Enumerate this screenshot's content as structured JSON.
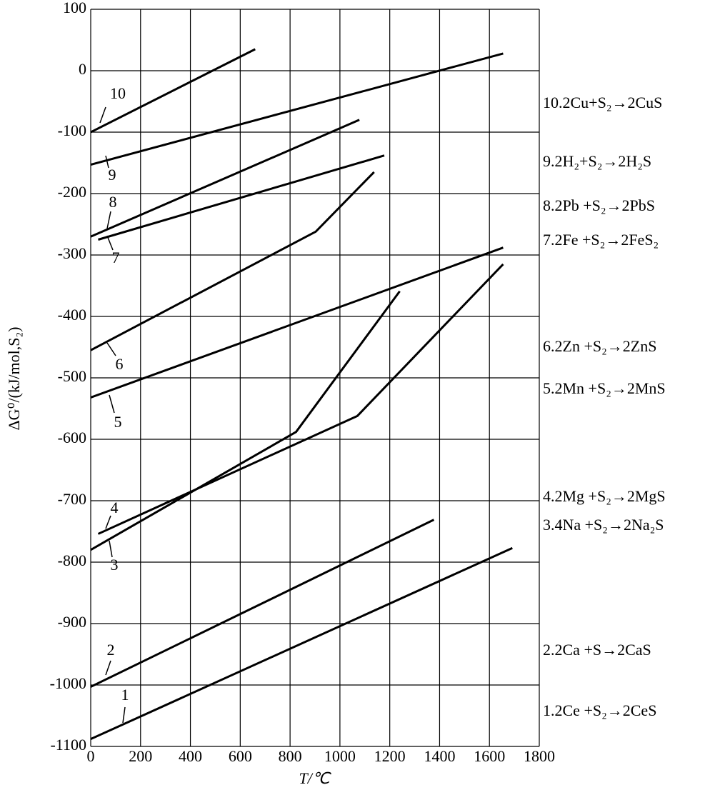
{
  "chart_data": {
    "type": "line",
    "xlabel": "T/℃",
    "ylabel": "ΔG⁰/(kJ/mol,S₂)",
    "xlim": [
      0,
      1800
    ],
    "xticks": [
      0,
      200,
      400,
      600,
      800,
      1000,
      1200,
      1400,
      1600,
      1800
    ],
    "ylim": [
      -1100,
      100
    ],
    "yticks": [
      -1100,
      -1000,
      -900,
      -800,
      -700,
      -600,
      -500,
      -400,
      -300,
      -200,
      -100,
      0,
      100
    ],
    "grid": true,
    "series": [
      {
        "label": "10",
        "name": "10.2Cu+S₂→2CuS",
        "color": "#000000",
        "x": [
          0,
          660
        ],
        "values": [
          -100,
          35
        ]
      },
      {
        "label": "9",
        "name": "9.2H₂+S₂→2H₂S",
        "color": "#000000",
        "x": [
          0,
          1655
        ],
        "values": [
          -153,
          28
        ]
      },
      {
        "label": "8",
        "name": "8.2Pb +S₂→2PbS",
        "color": "#000000",
        "x": [
          0,
          1078
        ],
        "values": [
          -270,
          -80
        ]
      },
      {
        "label": "7",
        "name": "7.2Fe +S₂→2FeS₂",
        "color": "#000000",
        "x": [
          30,
          1178
        ],
        "values": [
          -275,
          -138
        ]
      },
      {
        "label": "6",
        "name": "6.2Zn +S₂→2ZnS",
        "color": "#000000",
        "x": [
          0,
          903,
          1137
        ],
        "values": [
          -455,
          -262,
          -165
        ]
      },
      {
        "label": "5",
        "name": "5.2Mn +S₂→2MnS",
        "color": "#000000",
        "x": [
          0,
          1655
        ],
        "values": [
          -532,
          -288
        ]
      },
      {
        "label": "4",
        "name": "4.2Mg +S₂→2MgS",
        "color": "#000000",
        "x": [
          30,
          1070,
          1655
        ],
        "values": [
          -754,
          -562,
          -315
        ]
      },
      {
        "label": "3",
        "name": "3.4Na +S₂→2Na₂S",
        "color": "#000000",
        "x": [
          0,
          824,
          1240
        ],
        "values": [
          -780,
          -588,
          -359
        ]
      },
      {
        "label": "2",
        "name": "2.2Ca +S→2CaS",
        "color": "#000000",
        "x": [
          0,
          1377
        ],
        "values": [
          -1003,
          -731
        ]
      },
      {
        "label": "1",
        "name": "1.2Ce +S₂→2CeS",
        "color": "#000000",
        "x": [
          0,
          1692
        ],
        "values": [
          -1088,
          -777
        ]
      }
    ]
  }
}
